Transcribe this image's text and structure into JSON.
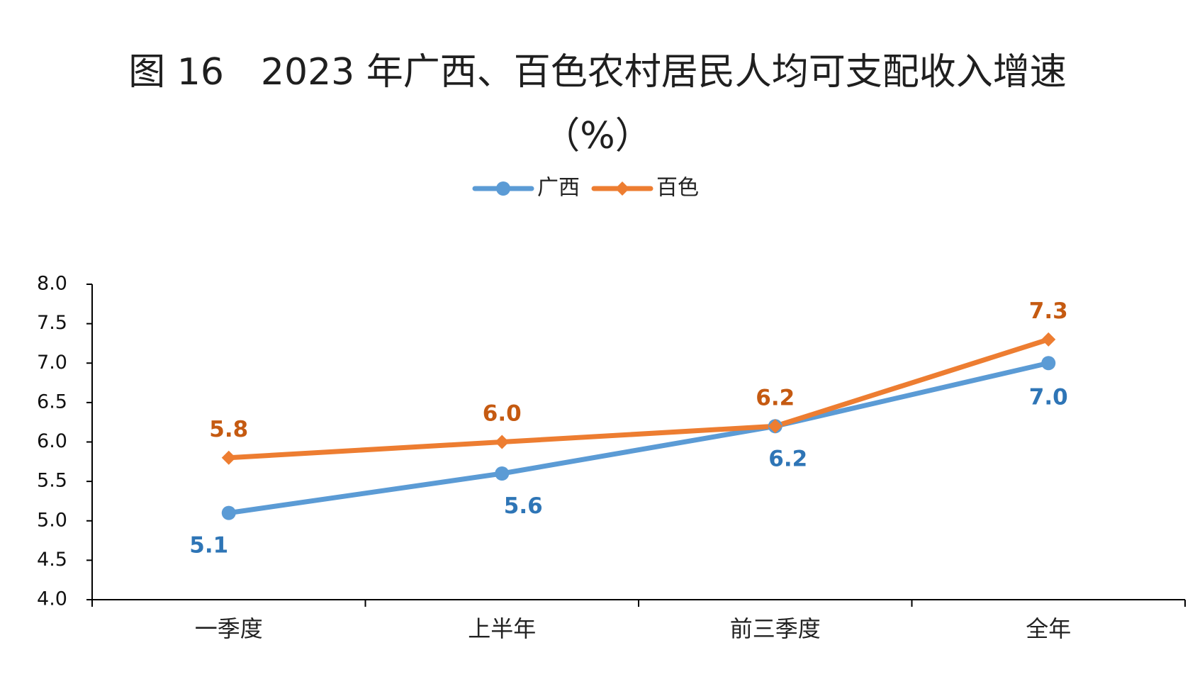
{
  "chart_data": {
    "type": "line",
    "title": "图 16　2023 年广西、百色农村居民人均可支配收入增速",
    "subtitle": "（%）",
    "categories": [
      "一季度",
      "上半年",
      "前三季度",
      "全年"
    ],
    "series": [
      {
        "name": "广西",
        "values": [
          5.1,
          5.6,
          6.2,
          7.0
        ],
        "labels": [
          "5.1",
          "5.6",
          "6.2",
          "7.0"
        ],
        "color": "#5b9bd5",
        "label_color": "#2e75b6",
        "marker": "circle",
        "label_position": "below"
      },
      {
        "name": "百色",
        "values": [
          5.8,
          6.0,
          6.2,
          7.3
        ],
        "labels": [
          "5.8",
          "6.0",
          "6.2",
          "7.3"
        ],
        "color": "#ed7d31",
        "label_color": "#c55a11",
        "marker": "diamond",
        "label_position": "above"
      }
    ],
    "ylim": [
      4.0,
      8.0
    ],
    "y_ticks": [
      "4.0",
      "4.5",
      "5.0",
      "5.5",
      "6.0",
      "6.5",
      "7.0",
      "7.5",
      "8.0"
    ],
    "grid": false,
    "legend": "top-center"
  }
}
